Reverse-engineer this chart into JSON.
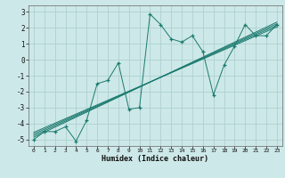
{
  "xlabel": "Humidex (Indice chaleur)",
  "bg_color": "#cde8e8",
  "grid_color": "#a8cccc",
  "line_color": "#1a7a6e",
  "xlim": [
    -0.5,
    23.5
  ],
  "ylim": [
    -5.4,
    3.4
  ],
  "xticks": [
    0,
    1,
    2,
    3,
    4,
    5,
    6,
    7,
    8,
    9,
    10,
    11,
    12,
    13,
    14,
    15,
    16,
    17,
    18,
    19,
    20,
    21,
    22,
    23
  ],
  "yticks": [
    -5,
    -4,
    -3,
    -2,
    -1,
    0,
    1,
    2,
    3
  ],
  "data_x": [
    0,
    1,
    2,
    3,
    4,
    5,
    6,
    7,
    8,
    9,
    10,
    11,
    12,
    13,
    14,
    15,
    16,
    17,
    18,
    19,
    20,
    21,
    22,
    23
  ],
  "data_y": [
    -5.0,
    -4.5,
    -4.5,
    -4.2,
    -5.1,
    -3.8,
    -1.5,
    -1.3,
    -0.2,
    -3.1,
    -3.0,
    2.85,
    2.2,
    1.3,
    1.1,
    1.5,
    0.5,
    -2.2,
    -0.35,
    0.85,
    2.2,
    1.5,
    1.5,
    2.2
  ],
  "trend_lines": [
    {
      "x0": 0,
      "y0": -4.85,
      "x1": 23,
      "y1": 2.35
    },
    {
      "x0": 0,
      "y0": -4.75,
      "x1": 23,
      "y1": 2.25
    },
    {
      "x0": 0,
      "y0": -4.65,
      "x1": 23,
      "y1": 2.15
    },
    {
      "x0": 0,
      "y0": -4.55,
      "x1": 23,
      "y1": 2.05
    }
  ]
}
